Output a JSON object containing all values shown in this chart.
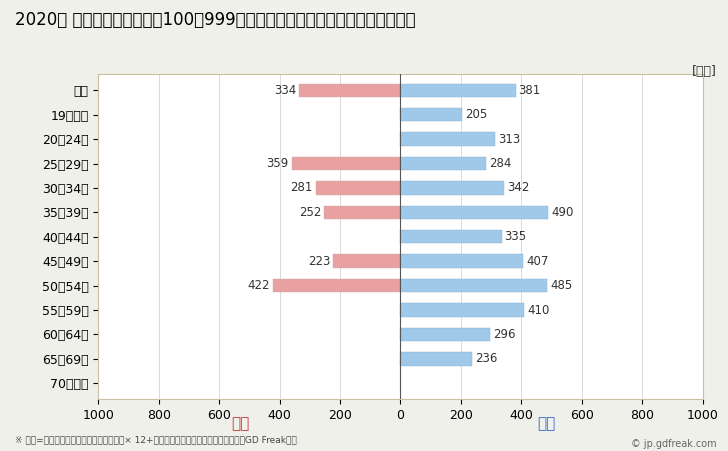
{
  "title": "2020年 民間企業（従業者数100～999人）フルタイム労働者の男女別平均年収",
  "ylabel_unit": "[万円]",
  "categories": [
    "全体",
    "19歳以下",
    "20～24歳",
    "25～29歳",
    "30～34歳",
    "35～39歳",
    "40～44歳",
    "45～49歳",
    "50～54歳",
    "55～59歳",
    "60～64歳",
    "65～69歳",
    "70歳以上"
  ],
  "female_values": [
    334,
    0,
    0,
    359,
    281,
    252,
    0,
    223,
    422,
    0,
    0,
    0,
    0
  ],
  "male_values": [
    381,
    205,
    313,
    284,
    342,
    490,
    335,
    407,
    485,
    410,
    296,
    236,
    0
  ],
  "female_color": "#e8a0a0",
  "male_color": "#a0c8e8",
  "female_label": "女性",
  "male_label": "男性",
  "female_label_color": "#cc3333",
  "male_label_color": "#3366cc",
  "xlim": [
    -1000,
    1000
  ],
  "xticks": [
    -1000,
    -800,
    -600,
    -400,
    -200,
    0,
    200,
    400,
    600,
    800,
    1000
  ],
  "xticklabels": [
    "1000",
    "800",
    "600",
    "400",
    "200",
    "0",
    "200",
    "400",
    "600",
    "800",
    "1000"
  ],
  "background_color": "#f0f0eb",
  "plot_bg_color": "#ffffff",
  "grid_color": "#cccccc",
  "footnote": "※ 年収=「きまって支給する現金給与額」× 12+「年間賞与その他特別給与額」としてGD Freak推計",
  "copyright": "© jp.gdfreak.com",
  "title_fontsize": 12,
  "tick_fontsize": 9,
  "label_fontsize": 8.5,
  "bar_height": 0.55
}
